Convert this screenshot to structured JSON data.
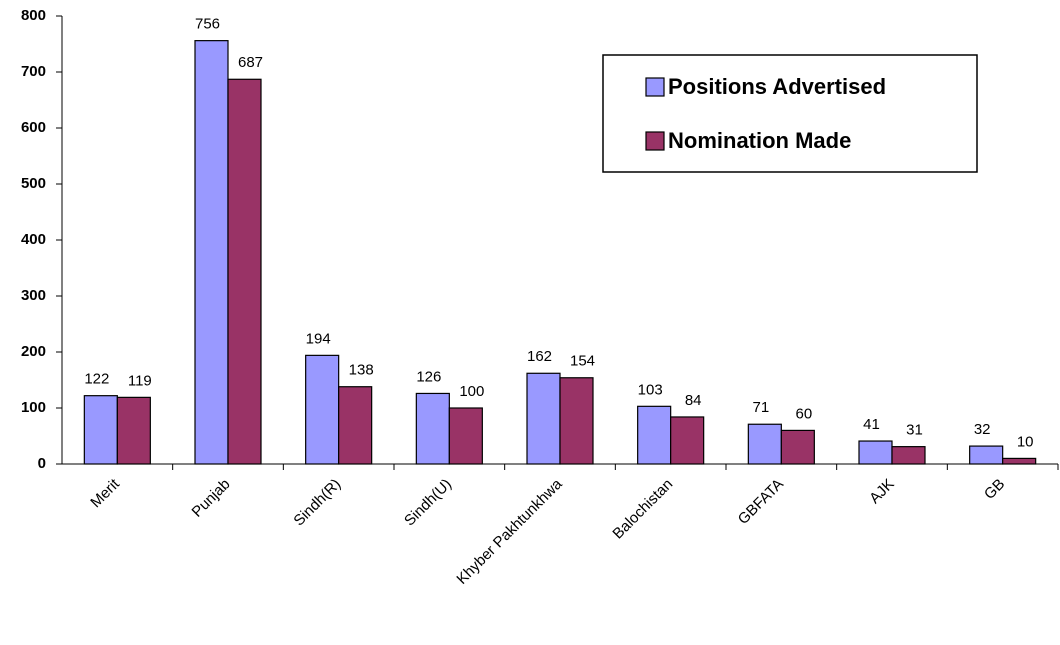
{
  "chart_data": {
    "type": "bar",
    "categories": [
      "Merit",
      "Punjab",
      "Sindh(R)",
      "Sindh(U)",
      "Khyber Pakhtunkhwa",
      "Balochistan",
      "GBFATA",
      "AJK",
      "GB"
    ],
    "series": [
      {
        "name": "Positions Advertised",
        "color": "#9999ff",
        "values": [
          122,
          756,
          194,
          126,
          162,
          103,
          71,
          41,
          32
        ]
      },
      {
        "name": "Nomination Made",
        "color": "#993366",
        "values": [
          119,
          687,
          138,
          100,
          154,
          84,
          60,
          31,
          10
        ]
      }
    ],
    "ylim": [
      0,
      800
    ],
    "yticks": [
      0,
      100,
      200,
      300,
      400,
      500,
      600,
      700,
      800
    ],
    "legend": "upper right"
  }
}
